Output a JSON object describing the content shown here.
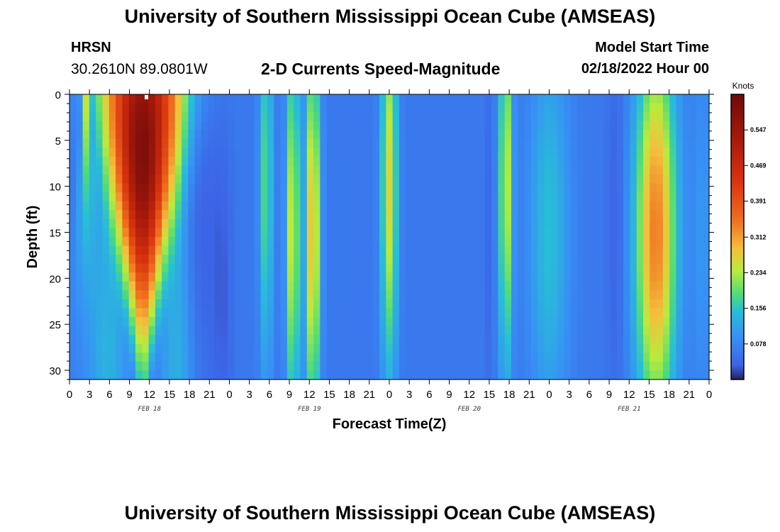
{
  "header": {
    "title": "University of Southern Mississippi Ocean Cube (AMSEAS)",
    "station": "HRSN",
    "coords": "30.2610N  89.0801W",
    "subtitle": "2-D Currents Speed-Magnitude",
    "model_start_label": "Model Start Time",
    "model_start_date": "02/18/2022 Hour 00"
  },
  "footer": {
    "title": "University of Southern Mississippi Ocean Cube (AMSEAS)"
  },
  "chart_data": {
    "type": "heatmap",
    "title": "2-D Currents Speed-Magnitude",
    "xlabel": "Forecast Time(Z)",
    "ylabel": "Depth (ft)",
    "x_range_hours": [
      0,
      96
    ],
    "y_range_ft": [
      0,
      31
    ],
    "x_tick_labels": [
      "0",
      "3",
      "6",
      "9",
      "12",
      "15",
      "18",
      "21",
      "0",
      "3",
      "6",
      "9",
      "12",
      "15",
      "18",
      "21",
      "0",
      "3",
      "6",
      "9",
      "12",
      "15",
      "18",
      "21",
      "0",
      "3",
      "6",
      "9",
      "12",
      "15",
      "18",
      "21",
      "0"
    ],
    "y_ticks": [
      0,
      5,
      10,
      15,
      20,
      25,
      30
    ],
    "day_labels": [
      {
        "hour": 12,
        "label": "FEB 18"
      },
      {
        "hour": 36,
        "label": "FEB 19"
      },
      {
        "hour": 60,
        "label": "FEB 20"
      },
      {
        "hour": 84,
        "label": "FEB 21"
      }
    ],
    "colorbar": {
      "unit": "Knots",
      "min": 0,
      "max": 0.625,
      "ticks": [
        0.078,
        0.156,
        0.234,
        0.312,
        0.391,
        0.469,
        0.547
      ],
      "tick_labels": [
        "0.078",
        "0.156",
        "0.234",
        "0.312",
        "0.391",
        "0.469",
        "0.547"
      ]
    },
    "features_knots": [
      {
        "hour": 2.5,
        "depth": 0,
        "speed": 0.19,
        "width_h": 1.6,
        "width_grow": 0.06
      },
      {
        "hour": 11,
        "depth": 6,
        "speed": 0.6,
        "width_h": 3.5,
        "width_grow": -0.045
      },
      {
        "hour": 6,
        "depth": 28,
        "speed": 0.13,
        "width_h": 2.2,
        "width_grow": 0.02
      },
      {
        "hour": 16,
        "depth": 28,
        "speed": 0.13,
        "width_h": 2.0,
        "width_grow": 0.02
      },
      {
        "hour": 20,
        "depth": 13,
        "speed": 0.03,
        "width_h": 2.2,
        "width_grow": 0
      },
      {
        "hour": 23,
        "depth": 22,
        "speed": 0.03,
        "width_h": 1.5,
        "width_grow": 0
      },
      {
        "hour": 29.5,
        "depth": 10,
        "speed": 0.19,
        "width_h": 1.0,
        "width_grow": 0
      },
      {
        "hour": 33.5,
        "depth": 15,
        "speed": 0.26,
        "width_h": 1.0,
        "width_grow": 0
      },
      {
        "hour": 36.5,
        "depth": 15,
        "speed": 0.3,
        "width_h": 1.1,
        "width_grow": 0
      },
      {
        "hour": 48,
        "depth": 10,
        "speed": 0.26,
        "width_h": 1.2,
        "width_grow": 0
      },
      {
        "hour": 62.5,
        "depth": 15,
        "speed": 0.005,
        "width_h": 0.35,
        "width_grow": 0
      },
      {
        "hour": 65.5,
        "depth": 10,
        "speed": 0.25,
        "width_h": 1.0,
        "width_grow": 0
      },
      {
        "hour": 72,
        "depth": 15,
        "speed": 0.15,
        "width_h": 3.0,
        "width_grow": 0
      },
      {
        "hour": 82,
        "depth": 14,
        "speed": 0.03,
        "width_h": 1.4,
        "width_grow": 0
      },
      {
        "hour": 88,
        "depth": 15,
        "speed": 0.34,
        "width_h": 3.0,
        "width_grow": 0
      },
      {
        "hour": 95,
        "depth": 15,
        "speed": 0.1,
        "width_h": 1.5,
        "width_grow": 0
      }
    ]
  }
}
